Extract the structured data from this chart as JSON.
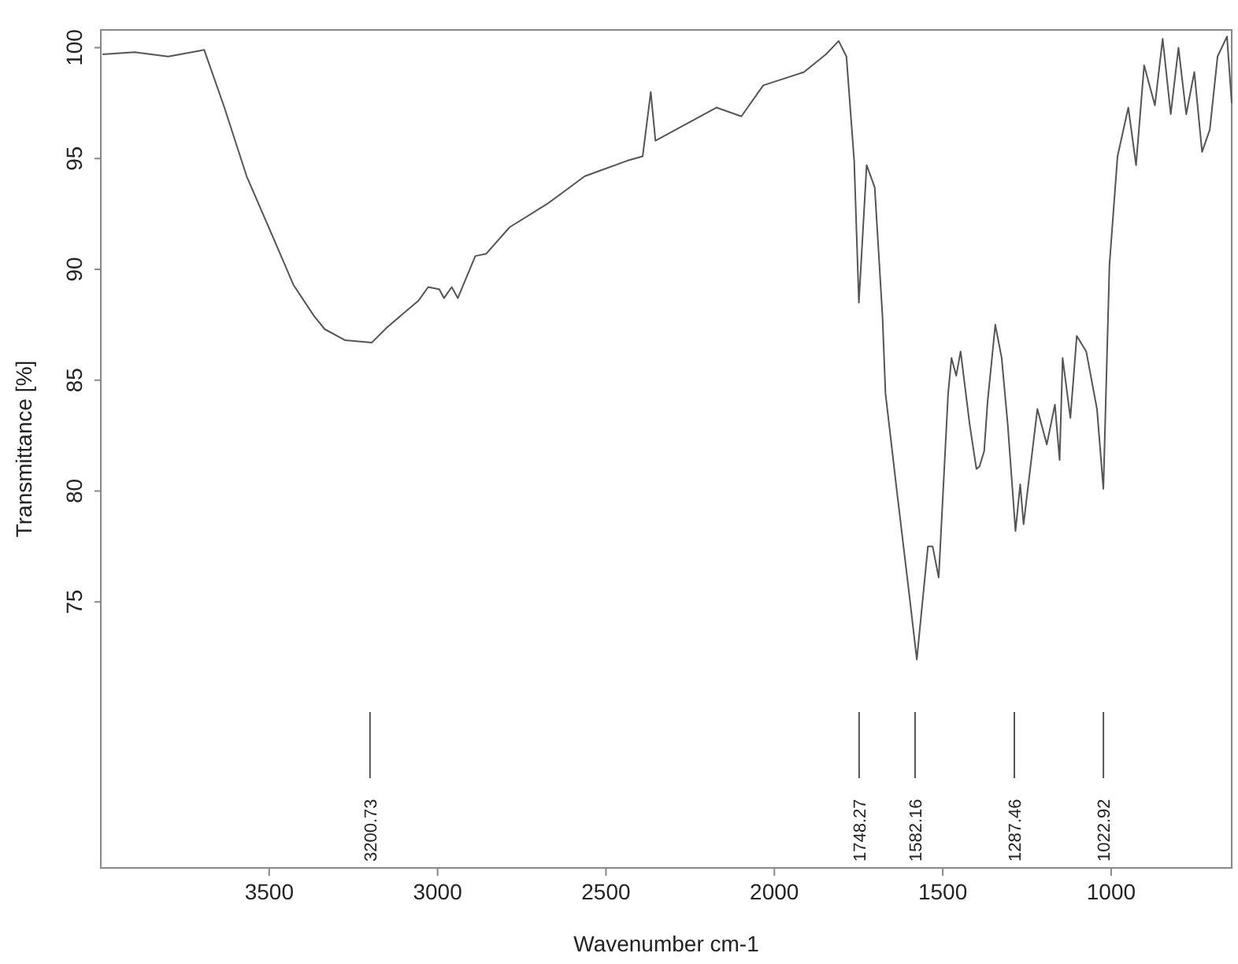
{
  "chart_data": {
    "type": "line",
    "xlabel": "Wavenumber cm-1",
    "ylabel": "Transmittance [%]",
    "xlim": [
      4000,
      642
    ],
    "xticks": [
      3500,
      3000,
      2500,
      2000,
      1500,
      1000
    ],
    "ylim": [
      63,
      100.8
    ],
    "yticks": [
      75,
      80,
      85,
      90,
      95,
      100
    ],
    "grid": false,
    "marker": "none",
    "line_style": "solid",
    "x": [
      3995,
      3900,
      3800,
      3693,
      3633,
      3567,
      3493,
      3428,
      3367,
      3335,
      3274,
      3195,
      3149,
      3056,
      3028,
      2995,
      2981,
      2958,
      2940,
      2888,
      2856,
      2786,
      2670,
      2563,
      2437,
      2391,
      2367,
      2353,
      2172,
      2098,
      2033,
      1912,
      1847,
      1809,
      1786,
      1763,
      1749,
      1726,
      1702,
      1679,
      1670,
      1637,
      1600,
      1577,
      1544,
      1530,
      1512,
      1484,
      1474,
      1460,
      1447,
      1420,
      1400,
      1391,
      1377,
      1367,
      1344,
      1325,
      1307,
      1284,
      1270,
      1260,
      1219,
      1191,
      1167,
      1153,
      1144,
      1121,
      1102,
      1074,
      1042,
      1023,
      1005,
      981,
      949,
      926,
      902,
      870,
      847,
      823,
      800,
      777,
      753,
      730,
      707,
      684,
      656,
      642
    ],
    "series": [
      {
        "color": "#555555",
        "values": [
          99.7,
          99.8,
          99.6,
          99.9,
          97.3,
          94.2,
          91.6,
          89.3,
          87.9,
          87.3,
          86.8,
          86.7,
          87.4,
          88.6,
          89.2,
          89.1,
          88.7,
          89.2,
          88.7,
          90.6,
          90.7,
          91.9,
          93.0,
          94.2,
          94.9,
          95.1,
          98.0,
          95.8,
          97.3,
          96.9,
          98.3,
          98.9,
          99.7,
          100.3,
          99.6,
          94.9,
          88.5,
          94.7,
          93.7,
          87.9,
          84.4,
          80.1,
          75.4,
          72.4,
          77.5,
          77.5,
          76.1,
          84.4,
          86.0,
          85.2,
          86.3,
          83.0,
          81.0,
          81.1,
          81.8,
          84.0,
          87.5,
          86.0,
          83.0,
          78.2,
          80.3,
          78.5,
          83.7,
          82.1,
          83.9,
          81.4,
          86.0,
          83.3,
          87.0,
          86.3,
          83.7,
          80.1,
          90.2,
          95.1,
          97.3,
          94.7,
          99.2,
          97.4,
          100.4,
          97.0,
          100.0,
          97.0,
          98.9,
          95.3,
          96.3,
          99.6,
          100.5,
          97.5
        ]
      }
    ],
    "ref_lines": [
      {
        "axis": "x",
        "value": 3200.73,
        "label": "3200.73"
      },
      {
        "axis": "x",
        "value": 1748.27,
        "label": "1748.27"
      },
      {
        "axis": "x",
        "value": 1582.16,
        "label": "1582.16"
      },
      {
        "axis": "x",
        "value": 1287.46,
        "label": "1287.46"
      },
      {
        "axis": "x",
        "value": 1022.92,
        "label": "1022.92"
      }
    ]
  }
}
